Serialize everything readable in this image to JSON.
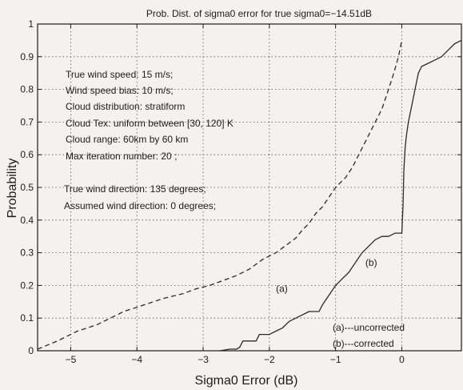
{
  "chart_data": {
    "type": "line",
    "title": "Prob. Dist. of sigma0 error for true sigma0=−14.51dB",
    "xlabel": "Sigma0 Error (dB)",
    "ylabel": "Probability",
    "xlim": [
      -5.5,
      0.9
    ],
    "ylim": [
      0,
      1
    ],
    "xticks": [
      -5,
      -4,
      -3,
      -2,
      -1,
      0
    ],
    "xtick_labels": [
      "−5",
      "−4",
      "−3",
      "−2",
      "−1",
      "0"
    ],
    "yticks": [
      0,
      0.1,
      0.2,
      0.3,
      0.4,
      0.5,
      0.6,
      0.7,
      0.8,
      0.9,
      1
    ],
    "ytick_labels": [
      "0",
      "0.1",
      "0.2",
      "0.3",
      "0.4",
      "0.5",
      "0.6",
      "0.7",
      "0.8",
      "0.9",
      "1"
    ],
    "grid": true,
    "series": [
      {
        "name": "(a)---uncorrected",
        "style": "dashed",
        "color": "#2a2a2a",
        "x": [
          -5.5,
          -5.2,
          -4.9,
          -4.6,
          -4.4,
          -4.2,
          -3.9,
          -3.6,
          -3.3,
          -3.1,
          -2.9,
          -2.7,
          -2.5,
          -2.3,
          -2.2,
          -2.1,
          -1.9,
          -1.7,
          -1.6,
          -1.5,
          -1.4,
          -1.3,
          -1.2,
          -1.1,
          -1.0,
          -0.85,
          -0.75,
          -0.6,
          -0.5,
          -0.4,
          -0.3,
          -0.2,
          -0.12,
          -0.05,
          0.0
        ],
        "y": [
          0.005,
          0.03,
          0.06,
          0.08,
          0.1,
          0.12,
          0.14,
          0.16,
          0.175,
          0.19,
          0.2,
          0.215,
          0.23,
          0.25,
          0.265,
          0.28,
          0.3,
          0.33,
          0.345,
          0.37,
          0.39,
          0.42,
          0.44,
          0.47,
          0.5,
          0.53,
          0.56,
          0.62,
          0.66,
          0.7,
          0.74,
          0.8,
          0.85,
          0.9,
          0.95
        ]
      },
      {
        "name": "(b)---corrected",
        "style": "solid",
        "color": "#2a2a2a",
        "x": [
          -2.75,
          -2.6,
          -2.5,
          -2.45,
          -2.4,
          -2.3,
          -2.2,
          -2.15,
          -2.1,
          -2.0,
          -1.9,
          -1.8,
          -1.7,
          -1.6,
          -1.5,
          -1.4,
          -1.3,
          -1.25,
          -1.2,
          -1.1,
          -1.0,
          -0.9,
          -0.8,
          -0.7,
          -0.6,
          -0.5,
          -0.4,
          -0.3,
          -0.2,
          -0.1,
          0.0,
          0.02,
          0.03,
          0.05,
          0.07,
          0.1,
          0.15,
          0.2,
          0.25,
          0.3,
          0.4,
          0.5,
          0.6,
          0.7,
          0.8,
          0.9
        ],
        "y": [
          0.0,
          0.005,
          0.005,
          0.01,
          0.03,
          0.03,
          0.03,
          0.05,
          0.05,
          0.05,
          0.06,
          0.07,
          0.09,
          0.1,
          0.11,
          0.12,
          0.12,
          0.12,
          0.14,
          0.17,
          0.2,
          0.22,
          0.24,
          0.27,
          0.3,
          0.32,
          0.34,
          0.35,
          0.35,
          0.36,
          0.36,
          0.45,
          0.55,
          0.62,
          0.66,
          0.7,
          0.75,
          0.8,
          0.85,
          0.87,
          0.88,
          0.89,
          0.9,
          0.92,
          0.94,
          0.95
        ]
      }
    ],
    "curve_labels": [
      {
        "text": "(a)",
        "x": -1.9,
        "y": 0.19
      },
      {
        "text": "(b)",
        "x": -0.55,
        "y": 0.27
      }
    ],
    "annotations": [
      "True wind speed: 15 m/s;",
      "Wind speed bias: 10 m/s;",
      "Cloud distribution: stratiform",
      "Cloud Tex: uniform between [30, 120] K",
      "Cloud range: 60km by 60 km",
      "Max iteration number: 20 ;",
      "True wind direction: 135 degrees;",
      "Assumed wind direction: 0 degrees;"
    ],
    "legend": {
      "position": "bottom-right",
      "entries": [
        "(a)---uncorrected",
        "(b)---corrected"
      ]
    }
  }
}
